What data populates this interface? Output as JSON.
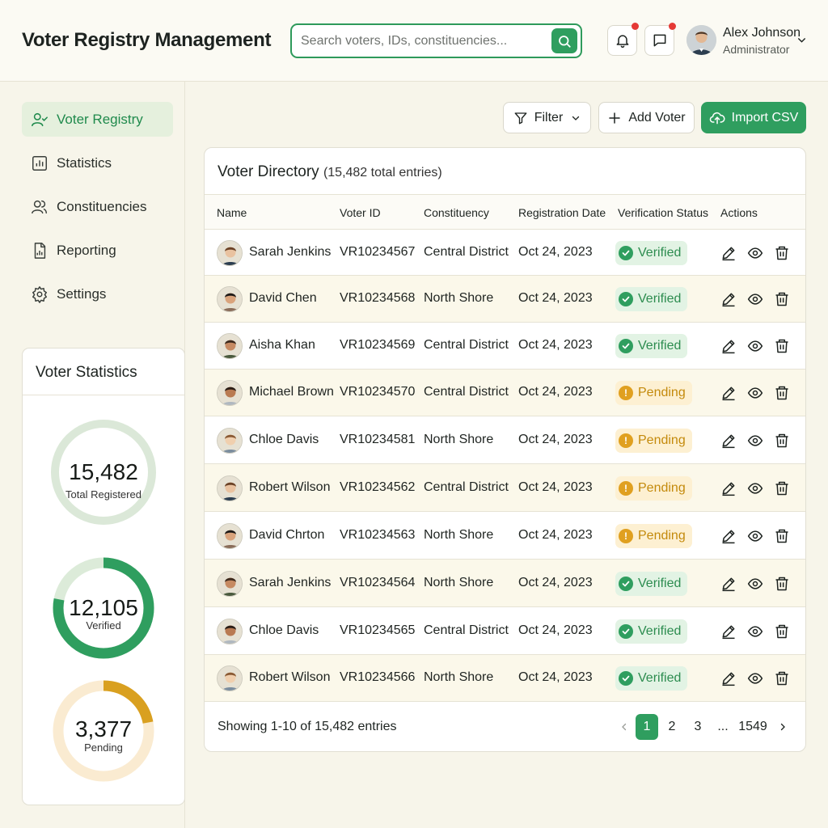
{
  "header": {
    "title": "Voter Registry Management",
    "search_placeholder": "Search voters, IDs, constituencies...",
    "user_name": "Alex Johnson",
    "user_role": "Administrator"
  },
  "sidebar": {
    "items": [
      {
        "label": "Voter Registry",
        "icon": "user-check-icon",
        "active": true
      },
      {
        "label": "Statistics",
        "icon": "bar-chart-icon",
        "active": false
      },
      {
        "label": "Constituencies",
        "icon": "users-icon",
        "active": false
      },
      {
        "label": "Reporting",
        "icon": "report-icon",
        "active": false
      },
      {
        "label": "Settings",
        "icon": "gear-icon",
        "active": false
      }
    ]
  },
  "stats": {
    "title": "Voter Statistics",
    "total_value": "15,482",
    "total_label": "Total Registered",
    "verified_value": "12,105",
    "verified_label": "Verified",
    "verified_fraction": 0.78,
    "pending_value": "3,377",
    "pending_label": "Pending",
    "pending_fraction": 0.22
  },
  "toolbar": {
    "filter_label": "Filter",
    "add_label": "Add Voter",
    "import_label": "Import CSV"
  },
  "table": {
    "title": "Voter Directory",
    "count": "(15,482 total entries)",
    "headers": {
      "name": "Name",
      "voter_id": "Voter ID",
      "constituency": "Constituency",
      "reg_date": "Registration Date",
      "status": "Verification Status",
      "actions": "Actions"
    },
    "rows": [
      {
        "name": "Sarah Jenkins",
        "id": "VR10234567",
        "constituency": "Central District",
        "date": "Oct 24, 2023",
        "status": "Verified"
      },
      {
        "name": "David Chen",
        "id": "VR10234568",
        "constituency": "North Shore",
        "date": "Oct 24, 2023",
        "status": "Verified"
      },
      {
        "name": "Aisha Khan",
        "id": "VR10234569",
        "constituency": "Central District",
        "date": "Oct 24, 2023",
        "status": "Verified"
      },
      {
        "name": "Michael Brown",
        "id": "VR10234570",
        "constituency": "Central District",
        "date": "Oct 24, 2023",
        "status": "Pending"
      },
      {
        "name": "Chloe Davis",
        "id": "VR10234581",
        "constituency": "North Shore",
        "date": "Oct 24, 2023",
        "status": "Pending"
      },
      {
        "name": "Robert Wilson",
        "id": "VR10234562",
        "constituency": "Central District",
        "date": "Oct 24, 2023",
        "status": "Pending"
      },
      {
        "name": "David Chrton",
        "id": "VR10234563",
        "constituency": "North Shore",
        "date": "Oct 24, 2023",
        "status": "Pending"
      },
      {
        "name": "Sarah Jenkins",
        "id": "VR10234564",
        "constituency": "North Shore",
        "date": "Oct 24, 2023",
        "status": "Verified"
      },
      {
        "name": "Chloe Davis",
        "id": "VR10234565",
        "constituency": "Central District",
        "date": "Oct 24, 2023",
        "status": "Verified"
      },
      {
        "name": "Robert Wilson",
        "id": "VR10234566",
        "constituency": "North Shore",
        "date": "Oct 24, 2023",
        "status": "Verified"
      }
    ],
    "footer": "Showing 1-10 of 15,482 entries",
    "pagination": {
      "pages": [
        "1",
        "2",
        "3",
        "...",
        "1549"
      ],
      "current": "1"
    }
  },
  "colors": {
    "accent": "#2f9e5f",
    "pending": "#e0a020",
    "background": "#f7f5ea"
  }
}
